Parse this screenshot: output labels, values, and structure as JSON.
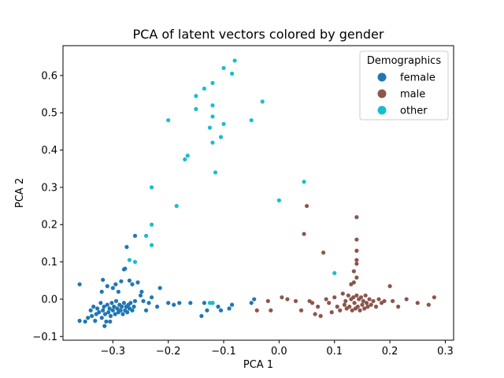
{
  "chart_data": {
    "type": "scatter",
    "title": "PCA of latent vectors colored by gender",
    "xlabel": "PCA 1",
    "ylabel": "PCA 2",
    "xlim": [
      -0.39,
      0.315
    ],
    "ylim": [
      -0.11,
      0.68
    ],
    "xticks": [
      -0.3,
      -0.2,
      -0.1,
      0.0,
      0.1,
      0.2,
      0.3
    ],
    "xtick_labels": [
      "−0.3",
      "−0.2",
      "−0.1",
      "0.0",
      "0.1",
      "0.2",
      "0.3"
    ],
    "yticks": [
      -0.1,
      0.0,
      0.1,
      0.2,
      0.3,
      0.4,
      0.5,
      0.6
    ],
    "ytick_labels": [
      "−0.1",
      "0.0",
      "0.1",
      "0.2",
      "0.3",
      "0.4",
      "0.5",
      "0.6"
    ],
    "grid": false,
    "legend": {
      "title": "Demographics",
      "placement": "top-right",
      "entries": [
        "female",
        "male",
        "other"
      ]
    },
    "series": [
      {
        "name": "female",
        "color": "#1f77b4",
        "points": [
          [
            -0.36,
            0.04
          ],
          [
            -0.36,
            -0.058
          ],
          [
            -0.35,
            -0.06
          ],
          [
            -0.345,
            -0.05
          ],
          [
            -0.34,
            -0.03
          ],
          [
            -0.338,
            -0.045
          ],
          [
            -0.335,
            -0.02
          ],
          [
            -0.332,
            -0.058
          ],
          [
            -0.33,
            -0.04
          ],
          [
            -0.328,
            -0.025
          ],
          [
            -0.325,
            -0.035
          ],
          [
            -0.322,
            -0.01
          ],
          [
            -0.32,
            -0.05
          ],
          [
            -0.318,
            -0.03
          ],
          [
            -0.316,
            -0.02
          ],
          [
            -0.314,
            -0.04
          ],
          [
            -0.312,
            -0.06
          ],
          [
            -0.31,
            -0.015
          ],
          [
            -0.308,
            -0.035
          ],
          [
            -0.306,
            -0.025
          ],
          [
            -0.304,
            -0.045
          ],
          [
            -0.302,
            -0.01
          ],
          [
            -0.3,
            -0.03
          ],
          [
            -0.298,
            -0.02
          ],
          [
            -0.296,
            -0.04
          ],
          [
            -0.294,
            -0.005
          ],
          [
            -0.292,
            -0.025
          ],
          [
            -0.29,
            -0.035
          ],
          [
            -0.288,
            -0.015
          ],
          [
            -0.286,
            -0.03
          ],
          [
            -0.284,
            -0.02
          ],
          [
            -0.282,
            -0.04
          ],
          [
            -0.28,
            -0.01
          ],
          [
            -0.278,
            -0.03
          ],
          [
            -0.276,
            -0.02
          ],
          [
            -0.274,
            -0.035
          ],
          [
            -0.272,
            -0.015
          ],
          [
            -0.27,
            -0.025
          ],
          [
            -0.268,
            -0.01
          ],
          [
            -0.265,
            -0.03
          ],
          [
            -0.262,
            -0.02
          ],
          [
            -0.26,
            -0.005
          ],
          [
            -0.315,
            -0.072
          ],
          [
            -0.305,
            -0.06
          ],
          [
            -0.32,
            0.02
          ],
          [
            -0.31,
            0.035
          ],
          [
            -0.318,
            0.052
          ],
          [
            -0.3,
            0.03
          ],
          [
            -0.29,
            0.02
          ],
          [
            -0.285,
            0.048
          ],
          [
            -0.28,
            0.08
          ],
          [
            -0.278,
            0.082
          ],
          [
            -0.275,
            0.14
          ],
          [
            -0.27,
            0.05
          ],
          [
            -0.26,
            0.17
          ],
          [
            -0.265,
            0.04
          ],
          [
            -0.25,
            0.01
          ],
          [
            -0.245,
            -0.005
          ],
          [
            -0.24,
            -0.03
          ],
          [
            -0.235,
            -0.01
          ],
          [
            -0.23,
            0.005
          ],
          [
            -0.22,
            -0.02
          ],
          [
            -0.215,
            0.03
          ],
          [
            -0.2,
            -0.01
          ],
          [
            -0.19,
            -0.015
          ],
          [
            -0.18,
            -0.01
          ],
          [
            -0.16,
            -0.01
          ],
          [
            -0.14,
            -0.045
          ],
          [
            -0.135,
            -0.01
          ],
          [
            -0.13,
            -0.03
          ],
          [
            -0.12,
            -0.01
          ],
          [
            -0.11,
            -0.02
          ],
          [
            -0.105,
            -0.03
          ],
          [
            -0.09,
            -0.025
          ],
          [
            -0.085,
            -0.015
          ],
          [
            -0.05,
            -0.01
          ],
          [
            -0.045,
            0.0
          ],
          [
            -0.255,
            0.045
          ],
          [
            -0.248,
            0.02
          ],
          [
            -0.295,
            0.04
          ]
        ]
      },
      {
        "name": "male",
        "color": "#8c564b",
        "points": [
          [
            -0.04,
            -0.03
          ],
          [
            -0.02,
            -0.005
          ],
          [
            -0.015,
            -0.03
          ],
          [
            0.005,
            0.005
          ],
          [
            0.015,
            0.0
          ],
          [
            0.03,
            -0.005
          ],
          [
            0.04,
            -0.03
          ],
          [
            0.045,
            0.175
          ],
          [
            0.05,
            0.25
          ],
          [
            0.055,
            -0.005
          ],
          [
            0.06,
            -0.01
          ],
          [
            0.065,
            -0.04
          ],
          [
            0.07,
            -0.02
          ],
          [
            0.075,
            -0.045
          ],
          [
            0.08,
            0.125
          ],
          [
            0.085,
            0.0
          ],
          [
            0.09,
            -0.01
          ],
          [
            0.095,
            -0.035
          ],
          [
            0.1,
            0.005
          ],
          [
            0.105,
            -0.02
          ],
          [
            0.11,
            -0.03
          ],
          [
            0.115,
            0.015
          ],
          [
            0.118,
            -0.015
          ],
          [
            0.12,
            -0.005
          ],
          [
            0.122,
            -0.025
          ],
          [
            0.125,
            0.01
          ],
          [
            0.127,
            -0.02
          ],
          [
            0.13,
            0.0
          ],
          [
            0.132,
            -0.03
          ],
          [
            0.134,
            0.005
          ],
          [
            0.136,
            -0.01
          ],
          [
            0.138,
            -0.025
          ],
          [
            0.14,
            0.01
          ],
          [
            0.142,
            -0.02
          ],
          [
            0.144,
            0.0
          ],
          [
            0.146,
            -0.03
          ],
          [
            0.148,
            0.005
          ],
          [
            0.15,
            -0.015
          ],
          [
            0.152,
            -0.005
          ],
          [
            0.154,
            -0.025
          ],
          [
            0.156,
            0.01
          ],
          [
            0.158,
            -0.01
          ],
          [
            0.16,
            -0.02
          ],
          [
            0.163,
            0.0
          ],
          [
            0.166,
            -0.015
          ],
          [
            0.17,
            -0.005
          ],
          [
            0.175,
            -0.02
          ],
          [
            0.18,
            0.0
          ],
          [
            0.185,
            -0.01
          ],
          [
            0.19,
            -0.005
          ],
          [
            0.2,
            0.035
          ],
          [
            0.205,
            -0.005
          ],
          [
            0.215,
            -0.02
          ],
          [
            0.25,
            -0.01
          ],
          [
            0.27,
            -0.015
          ],
          [
            0.28,
            0.005
          ],
          [
            0.14,
            0.22
          ],
          [
            0.14,
            0.16
          ],
          [
            0.14,
            0.13
          ],
          [
            0.14,
            0.105
          ],
          [
            0.14,
            0.095
          ],
          [
            0.135,
            0.075
          ],
          [
            0.14,
            0.058
          ],
          [
            0.135,
            0.045
          ],
          [
            0.13,
            0.04
          ],
          [
            0.23,
            0.0
          ]
        ]
      },
      {
        "name": "other",
        "color": "#17becf",
        "points": [
          [
            -0.08,
            0.64
          ],
          [
            -0.1,
            0.62
          ],
          [
            -0.085,
            0.605
          ],
          [
            -0.12,
            0.58
          ],
          [
            -0.135,
            0.565
          ],
          [
            -0.15,
            0.545
          ],
          [
            -0.03,
            0.53
          ],
          [
            -0.15,
            0.51
          ],
          [
            -0.12,
            0.52
          ],
          [
            -0.12,
            0.49
          ],
          [
            -0.2,
            0.48
          ],
          [
            -0.125,
            0.46
          ],
          [
            -0.1,
            0.47
          ],
          [
            -0.05,
            0.48
          ],
          [
            -0.105,
            0.435
          ],
          [
            -0.12,
            0.42
          ],
          [
            -0.165,
            0.385
          ],
          [
            -0.17,
            0.375
          ],
          [
            -0.115,
            0.34
          ],
          [
            -0.23,
            0.3
          ],
          [
            0.045,
            0.315
          ],
          [
            0.0,
            0.265
          ],
          [
            -0.185,
            0.25
          ],
          [
            -0.23,
            0.2
          ],
          [
            -0.24,
            0.17
          ],
          [
            -0.23,
            0.145
          ],
          [
            -0.27,
            0.105
          ],
          [
            -0.26,
            0.1
          ],
          [
            0.1,
            0.07
          ],
          [
            -0.12,
            -0.01
          ],
          [
            -0.125,
            -0.01
          ]
        ]
      }
    ]
  }
}
